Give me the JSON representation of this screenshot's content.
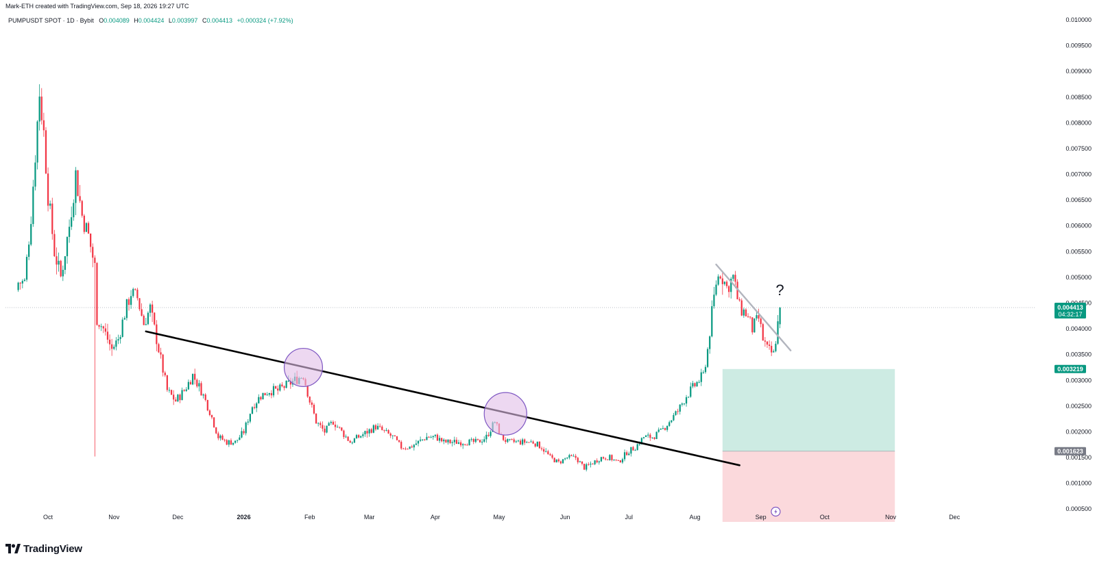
{
  "attribution": "Mark-ETH created with TradingView.com, Sep 18, 2026 19:27 UTC",
  "legend": {
    "symbol": "PUMPUSDT SPOT · 1D · Bybit",
    "o_key": "O",
    "o": "0.004089",
    "h_key": "H",
    "h": "0.004424",
    "l_key": "L",
    "l": "0.003997",
    "c_key": "C",
    "c": "0.004413",
    "change": "+0.000324 (+7.92%)"
  },
  "footer": {
    "brand": "TradingView",
    "logo_icon": "tradingview-logo-icon"
  },
  "colors": {
    "up": "#089981",
    "down": "#f23645",
    "trendline": "#000000",
    "resistance": "#b2b5be",
    "circle_fill": "#e1bee7",
    "circle_stroke": "#7e57c2",
    "target_zone": "#cdebe3",
    "stop_zone": "#fbd9dc"
  },
  "annotation": {
    "question": "?"
  },
  "price_tags": {
    "last": {
      "value": "0.004413",
      "countdown": "04:32:17"
    },
    "target": {
      "value": "0.003219"
    },
    "stop": {
      "value": "0.001623"
    }
  },
  "chart_data": {
    "type": "candlestick",
    "title": "PUMPUSDT SPOT · 1D · Bybit",
    "y_ticks": [
      "0.010000",
      "0.009500",
      "0.009000",
      "0.008500",
      "0.008000",
      "0.007500",
      "0.007000",
      "0.006500",
      "0.006000",
      "0.005500",
      "0.005000",
      "0.004500",
      "0.004000",
      "0.003500",
      "0.003000",
      "0.002500",
      "0.002000",
      "0.001500",
      "0.001000",
      "0.000500"
    ],
    "y_tick_values": [
      0.01,
      0.0095,
      0.009,
      0.0085,
      0.008,
      0.0075,
      0.007,
      0.0065,
      0.006,
      0.0055,
      0.005,
      0.0045,
      0.004,
      0.0035,
      0.003,
      0.0025,
      0.002,
      0.0015,
      0.001,
      0.0005
    ],
    "x_ticks": [
      {
        "label": "Oct",
        "day": 14,
        "year": false
      },
      {
        "label": "Nov",
        "day": 45,
        "year": false
      },
      {
        "label": "Dec",
        "day": 75,
        "year": false
      },
      {
        "label": "2026",
        "day": 106,
        "year": true
      },
      {
        "label": "Feb",
        "day": 137,
        "year": false
      },
      {
        "label": "Mar",
        "day": 165,
        "year": false
      },
      {
        "label": "Apr",
        "day": 196,
        "year": false
      },
      {
        "label": "May",
        "day": 226,
        "year": false
      },
      {
        "label": "Jun",
        "day": 257,
        "year": false
      },
      {
        "label": "Jul",
        "day": 287,
        "year": false
      },
      {
        "label": "Aug",
        "day": 318,
        "year": false
      },
      {
        "label": "Sep",
        "day": 349,
        "year": false
      },
      {
        "label": "Oct",
        "day": 379,
        "year": false
      },
      {
        "label": "Nov",
        "day": 410,
        "year": false
      },
      {
        "label": "Dec",
        "day": 440,
        "year": false
      }
    ],
    "close_anchors": [
      [
        0,
        0.0049
      ],
      [
        3,
        0.0049
      ],
      [
        6,
        0.0062
      ],
      [
        9,
        0.008
      ],
      [
        10,
        0.0086
      ],
      [
        12,
        0.0078
      ],
      [
        14,
        0.0066
      ],
      [
        17,
        0.0055
      ],
      [
        20,
        0.005
      ],
      [
        24,
        0.006
      ],
      [
        27,
        0.007
      ],
      [
        30,
        0.0062
      ],
      [
        33,
        0.0058
      ],
      [
        36,
        0.0052
      ],
      [
        37,
        0.0042
      ],
      [
        40,
        0.004
      ],
      [
        44,
        0.0036
      ],
      [
        47,
        0.0038
      ],
      [
        50,
        0.0043
      ],
      [
        53,
        0.0047
      ],
      [
        56,
        0.0046
      ],
      [
        59,
        0.0041
      ],
      [
        62,
        0.0044
      ],
      [
        66,
        0.0036
      ],
      [
        70,
        0.0028
      ],
      [
        74,
        0.0026
      ],
      [
        78,
        0.0028
      ],
      [
        82,
        0.0031
      ],
      [
        86,
        0.0028
      ],
      [
        90,
        0.0024
      ],
      [
        94,
        0.0019
      ],
      [
        98,
        0.0018
      ],
      [
        102,
        0.0018
      ],
      [
        106,
        0.002
      ],
      [
        110,
        0.0025
      ],
      [
        114,
        0.0027
      ],
      [
        118,
        0.0028
      ],
      [
        122,
        0.0028
      ],
      [
        126,
        0.0029
      ],
      [
        130,
        0.003
      ],
      [
        134,
        0.0031
      ],
      [
        137,
        0.0026
      ],
      [
        140,
        0.0022
      ],
      [
        144,
        0.002
      ],
      [
        148,
        0.0022
      ],
      [
        152,
        0.002
      ],
      [
        156,
        0.0018
      ],
      [
        160,
        0.0019
      ],
      [
        164,
        0.002
      ],
      [
        168,
        0.0021
      ],
      [
        172,
        0.002
      ],
      [
        176,
        0.0019
      ],
      [
        180,
        0.0017
      ],
      [
        184,
        0.0017
      ],
      [
        188,
        0.0018
      ],
      [
        192,
        0.0019
      ],
      [
        196,
        0.0019
      ],
      [
        200,
        0.0018
      ],
      [
        204,
        0.0018
      ],
      [
        208,
        0.0018
      ],
      [
        212,
        0.0018
      ],
      [
        216,
        0.0018
      ],
      [
        220,
        0.0019
      ],
      [
        224,
        0.0022
      ],
      [
        227,
        0.0019
      ],
      [
        230,
        0.0018
      ],
      [
        234,
        0.0018
      ],
      [
        238,
        0.0018
      ],
      [
        242,
        0.0018
      ],
      [
        246,
        0.0017
      ],
      [
        250,
        0.0015
      ],
      [
        254,
        0.0014
      ],
      [
        258,
        0.0015
      ],
      [
        262,
        0.0015
      ],
      [
        266,
        0.0013
      ],
      [
        270,
        0.0014
      ],
      [
        274,
        0.0015
      ],
      [
        278,
        0.0015
      ],
      [
        282,
        0.0014
      ],
      [
        286,
        0.0016
      ],
      [
        290,
        0.0017
      ],
      [
        294,
        0.0019
      ],
      [
        298,
        0.0019
      ],
      [
        302,
        0.002
      ],
      [
        306,
        0.0022
      ],
      [
        310,
        0.0024
      ],
      [
        314,
        0.0027
      ],
      [
        318,
        0.0029
      ],
      [
        322,
        0.0031
      ],
      [
        324,
        0.0036
      ],
      [
        326,
        0.0043
      ],
      [
        328,
        0.0049
      ],
      [
        330,
        0.0051
      ],
      [
        333,
        0.0048
      ],
      [
        336,
        0.005
      ],
      [
        339,
        0.0044
      ],
      [
        342,
        0.0043
      ],
      [
        345,
        0.004
      ],
      [
        348,
        0.0042
      ],
      [
        350,
        0.0038
      ],
      [
        352,
        0.0036
      ],
      [
        355,
        0.0035
      ],
      [
        357,
        0.0041
      ],
      [
        358,
        0.0044
      ]
    ],
    "last_day": 358,
    "last_close": 0.004413,
    "trendlines": [
      {
        "name": "support-trendline",
        "from": [
          60,
          0.00395
        ],
        "to": [
          339,
          0.00135
        ]
      },
      {
        "name": "resistance-trendline",
        "from": [
          328,
          0.00525
        ],
        "to": [
          363,
          0.00358
        ]
      }
    ],
    "highlight_circles": [
      {
        "name": "rejection-circle-1",
        "center": [
          134,
          0.00325
        ],
        "radius_days": 9
      },
      {
        "name": "rejection-circle-2",
        "center": [
          229,
          0.00235
        ],
        "radius_days": 10
      }
    ],
    "position_zones": {
      "from_day": 331,
      "to_day": 412,
      "target_top": 0.003219,
      "entry": 0.001623,
      "stop_bottom": 0.00025
    },
    "annotation": {
      "text": "?",
      "day": 356,
      "price": 0.00465
    },
    "ylim": [
      0.00025,
      0.0102
    ],
    "xlim": [
      -6,
      478
    ]
  }
}
